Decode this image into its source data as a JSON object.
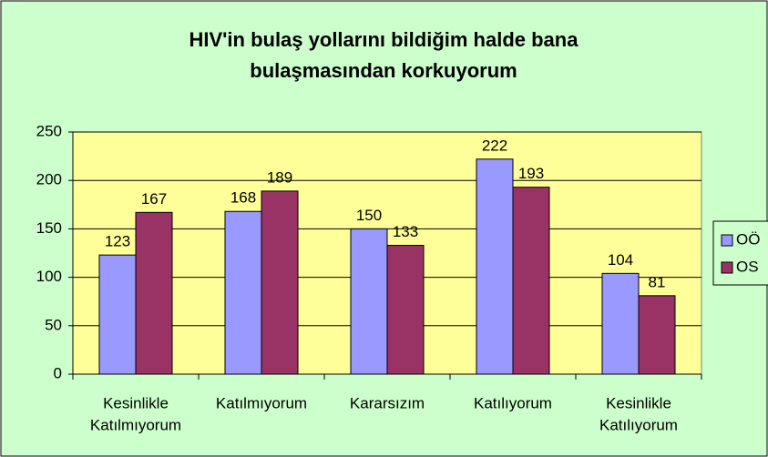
{
  "chart_data": {
    "type": "bar",
    "title": [
      "HIV'in bulaş yollarını bildiğim halde bana",
      "bulaşmasından korkuyorum"
    ],
    "categories": [
      [
        "Kesinlikle",
        "Katılmıyorum"
      ],
      [
        "Katılmıyorum"
      ],
      [
        "Kararsızım"
      ],
      [
        "Katılıyorum"
      ],
      [
        "Kesinlikle",
        "Katılıyorum"
      ]
    ],
    "series": [
      {
        "name": "OÖ",
        "color": "#9999ff",
        "values": [
          123,
          168,
          150,
          222,
          104
        ]
      },
      {
        "name": "OS",
        "color": "#993366",
        "values": [
          167,
          189,
          133,
          193,
          81
        ]
      }
    ],
    "ylim": [
      0,
      250
    ],
    "yticks": [
      0,
      50,
      100,
      150,
      200,
      250
    ],
    "grid": true,
    "legend": "right"
  }
}
